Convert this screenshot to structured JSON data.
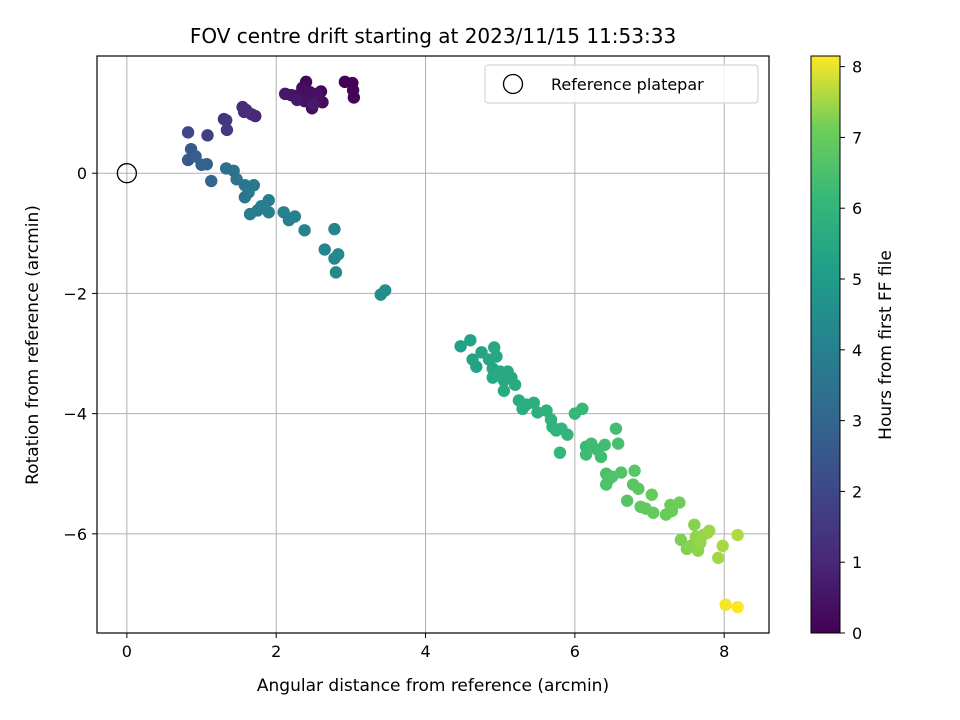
{
  "chart_data": {
    "type": "scatter",
    "title": "FOV centre drift starting at 2023/11/15 11:53:33",
    "xlabel": "Angular distance from reference (arcmin)",
    "ylabel": "Rotation from reference (arcmin)",
    "xlim": [
      -0.4,
      8.6
    ],
    "ylim": [
      -7.65,
      1.95
    ],
    "xticks": [
      0,
      2,
      4,
      6,
      8
    ],
    "yticks": [
      0,
      -2,
      -4,
      -6
    ],
    "xtick_labels": [
      "0",
      "2",
      "4",
      "6",
      "8"
    ],
    "ytick_labels": [
      "0",
      "−2",
      "−4",
      "−6"
    ],
    "grid": true,
    "legend": {
      "location": "top-right",
      "entries": [
        "Reference platepar"
      ]
    },
    "reference_point": {
      "x": 0,
      "y": 0,
      "marker": "open-circle"
    },
    "colorbar": {
      "label": "Hours from first FF file",
      "min": 0,
      "max": 8.15,
      "ticks": [
        0,
        1,
        2,
        3,
        4,
        5,
        6,
        7,
        8
      ],
      "tick_labels": [
        "0",
        "1",
        "2",
        "3",
        "4",
        "5",
        "6",
        "7",
        "8"
      ],
      "colormap": "viridis"
    },
    "points": [
      {
        "x": 2.92,
        "y": 1.52,
        "c": 0.02
      },
      {
        "x": 3.02,
        "y": 1.5,
        "c": 0.05
      },
      {
        "x": 3.03,
        "y": 1.38,
        "c": 0.08
      },
      {
        "x": 3.04,
        "y": 1.26,
        "c": 0.1
      },
      {
        "x": 2.4,
        "y": 1.52,
        "c": 0.15
      },
      {
        "x": 2.6,
        "y": 1.36,
        "c": 0.2
      },
      {
        "x": 2.62,
        "y": 1.18,
        "c": 0.25
      },
      {
        "x": 2.48,
        "y": 1.08,
        "c": 0.3
      },
      {
        "x": 2.35,
        "y": 1.42,
        "c": 0.32
      },
      {
        "x": 2.3,
        "y": 1.3,
        "c": 0.35
      },
      {
        "x": 2.45,
        "y": 1.35,
        "c": 0.38
      },
      {
        "x": 2.52,
        "y": 1.25,
        "c": 0.4
      },
      {
        "x": 2.38,
        "y": 1.2,
        "c": 0.42
      },
      {
        "x": 2.55,
        "y": 1.32,
        "c": 0.45
      },
      {
        "x": 2.2,
        "y": 1.3,
        "c": 0.5
      },
      {
        "x": 2.12,
        "y": 1.32,
        "c": 0.55
      },
      {
        "x": 2.28,
        "y": 1.22,
        "c": 0.6
      },
      {
        "x": 2.5,
        "y": 1.15,
        "c": 0.65
      },
      {
        "x": 1.72,
        "y": 0.95,
        "c": 1.0
      },
      {
        "x": 1.67,
        "y": 0.98,
        "c": 1.05
      },
      {
        "x": 1.55,
        "y": 1.1,
        "c": 1.1
      },
      {
        "x": 1.57,
        "y": 1.02,
        "c": 1.15
      },
      {
        "x": 1.6,
        "y": 1.05,
        "c": 1.2
      },
      {
        "x": 1.3,
        "y": 0.9,
        "c": 1.4
      },
      {
        "x": 1.33,
        "y": 0.88,
        "c": 1.5
      },
      {
        "x": 1.34,
        "y": 0.72,
        "c": 1.6
      },
      {
        "x": 1.08,
        "y": 0.63,
        "c": 1.8
      },
      {
        "x": 0.82,
        "y": 0.68,
        "c": 2.0
      },
      {
        "x": 0.82,
        "y": 0.22,
        "c": 2.5
      },
      {
        "x": 0.86,
        "y": 0.4,
        "c": 2.6
      },
      {
        "x": 0.92,
        "y": 0.28,
        "c": 2.7
      },
      {
        "x": 1.0,
        "y": 0.14,
        "c": 2.8
      },
      {
        "x": 1.07,
        "y": 0.15,
        "c": 2.9
      },
      {
        "x": 1.13,
        "y": -0.13,
        "c": 3.0
      },
      {
        "x": 1.33,
        "y": 0.08,
        "c": 3.3
      },
      {
        "x": 1.43,
        "y": 0.04,
        "c": 3.4
      },
      {
        "x": 1.47,
        "y": -0.1,
        "c": 3.5
      },
      {
        "x": 1.58,
        "y": -0.2,
        "c": 3.6
      },
      {
        "x": 1.58,
        "y": -0.4,
        "c": 3.6
      },
      {
        "x": 1.63,
        "y": -0.32,
        "c": 3.7
      },
      {
        "x": 1.7,
        "y": -0.2,
        "c": 3.7
      },
      {
        "x": 1.65,
        "y": -0.68,
        "c": 3.8
      },
      {
        "x": 1.75,
        "y": -0.62,
        "c": 3.8
      },
      {
        "x": 1.8,
        "y": -0.55,
        "c": 3.9
      },
      {
        "x": 1.9,
        "y": -0.45,
        "c": 3.9
      },
      {
        "x": 1.9,
        "y": -0.65,
        "c": 3.95
      },
      {
        "x": 2.1,
        "y": -0.65,
        "c": 4.0
      },
      {
        "x": 2.17,
        "y": -0.78,
        "c": 4.0
      },
      {
        "x": 2.25,
        "y": -0.72,
        "c": 4.05
      },
      {
        "x": 2.38,
        "y": -0.95,
        "c": 4.1
      },
      {
        "x": 2.65,
        "y": -1.27,
        "c": 4.2
      },
      {
        "x": 2.78,
        "y": -0.93,
        "c": 4.2
      },
      {
        "x": 2.78,
        "y": -1.42,
        "c": 4.25
      },
      {
        "x": 2.83,
        "y": -1.35,
        "c": 4.3
      },
      {
        "x": 2.8,
        "y": -1.65,
        "c": 4.3
      },
      {
        "x": 3.4,
        "y": -2.02,
        "c": 4.5
      },
      {
        "x": 3.46,
        "y": -1.95,
        "c": 4.55
      },
      {
        "x": 4.47,
        "y": -2.88,
        "c": 5.2
      },
      {
        "x": 4.6,
        "y": -2.78,
        "c": 5.25
      },
      {
        "x": 4.63,
        "y": -3.1,
        "c": 5.3
      },
      {
        "x": 4.68,
        "y": -3.22,
        "c": 5.3
      },
      {
        "x": 4.75,
        "y": -2.98,
        "c": 5.35
      },
      {
        "x": 4.85,
        "y": -3.1,
        "c": 5.4
      },
      {
        "x": 4.9,
        "y": -3.25,
        "c": 5.4
      },
      {
        "x": 4.92,
        "y": -2.9,
        "c": 5.45
      },
      {
        "x": 4.95,
        "y": -3.05,
        "c": 5.45
      },
      {
        "x": 5.0,
        "y": -3.3,
        "c": 5.5
      },
      {
        "x": 5.05,
        "y": -3.45,
        "c": 5.5
      },
      {
        "x": 4.9,
        "y": -3.4,
        "c": 5.5
      },
      {
        "x": 5.1,
        "y": -3.3,
        "c": 5.55
      },
      {
        "x": 5.15,
        "y": -3.4,
        "c": 5.55
      },
      {
        "x": 5.2,
        "y": -3.52,
        "c": 5.6
      },
      {
        "x": 5.05,
        "y": -3.62,
        "c": 5.6
      },
      {
        "x": 5.25,
        "y": -3.78,
        "c": 5.65
      },
      {
        "x": 5.3,
        "y": -3.92,
        "c": 5.7
      },
      {
        "x": 5.35,
        "y": -3.85,
        "c": 5.7
      },
      {
        "x": 5.45,
        "y": -3.82,
        "c": 5.75
      },
      {
        "x": 5.5,
        "y": -3.98,
        "c": 5.8
      },
      {
        "x": 5.62,
        "y": -3.95,
        "c": 5.85
      },
      {
        "x": 5.68,
        "y": -4.1,
        "c": 5.9
      },
      {
        "x": 5.7,
        "y": -4.22,
        "c": 5.9
      },
      {
        "x": 5.75,
        "y": -4.28,
        "c": 5.95
      },
      {
        "x": 5.82,
        "y": -4.25,
        "c": 6.0
      },
      {
        "x": 5.9,
        "y": -4.35,
        "c": 6.0
      },
      {
        "x": 5.8,
        "y": -4.65,
        "c": 6.05
      },
      {
        "x": 6.0,
        "y": -4.0,
        "c": 6.1
      },
      {
        "x": 6.1,
        "y": -3.92,
        "c": 6.15
      },
      {
        "x": 6.15,
        "y": -4.55,
        "c": 6.2
      },
      {
        "x": 6.15,
        "y": -4.68,
        "c": 6.25
      },
      {
        "x": 6.22,
        "y": -4.5,
        "c": 6.3
      },
      {
        "x": 6.3,
        "y": -4.6,
        "c": 6.3
      },
      {
        "x": 6.35,
        "y": -4.72,
        "c": 6.35
      },
      {
        "x": 6.4,
        "y": -4.52,
        "c": 6.35
      },
      {
        "x": 6.55,
        "y": -4.25,
        "c": 6.4
      },
      {
        "x": 6.58,
        "y": -4.5,
        "c": 6.45
      },
      {
        "x": 6.42,
        "y": -5.0,
        "c": 6.5
      },
      {
        "x": 6.45,
        "y": -5.1,
        "c": 6.55
      },
      {
        "x": 6.42,
        "y": -5.18,
        "c": 6.55
      },
      {
        "x": 6.5,
        "y": -5.05,
        "c": 6.6
      },
      {
        "x": 6.62,
        "y": -4.98,
        "c": 6.65
      },
      {
        "x": 6.7,
        "y": -5.45,
        "c": 6.7
      },
      {
        "x": 6.78,
        "y": -5.18,
        "c": 6.75
      },
      {
        "x": 6.8,
        "y": -4.95,
        "c": 6.75
      },
      {
        "x": 6.85,
        "y": -5.25,
        "c": 6.8
      },
      {
        "x": 6.88,
        "y": -5.55,
        "c": 6.85
      },
      {
        "x": 6.95,
        "y": -5.58,
        "c": 6.9
      },
      {
        "x": 7.03,
        "y": -5.35,
        "c": 6.95
      },
      {
        "x": 7.05,
        "y": -5.65,
        "c": 6.95
      },
      {
        "x": 7.22,
        "y": -5.68,
        "c": 7.0
      },
      {
        "x": 7.28,
        "y": -5.52,
        "c": 7.05
      },
      {
        "x": 7.3,
        "y": -5.62,
        "c": 7.05
      },
      {
        "x": 7.4,
        "y": -5.48,
        "c": 7.1
      },
      {
        "x": 7.42,
        "y": -6.1,
        "c": 7.2
      },
      {
        "x": 7.5,
        "y": -6.25,
        "c": 7.25
      },
      {
        "x": 7.55,
        "y": -6.2,
        "c": 7.3
      },
      {
        "x": 7.6,
        "y": -5.85,
        "c": 7.3
      },
      {
        "x": 7.62,
        "y": -6.05,
        "c": 7.35
      },
      {
        "x": 7.65,
        "y": -6.28,
        "c": 7.35
      },
      {
        "x": 7.68,
        "y": -6.15,
        "c": 7.4
      },
      {
        "x": 7.72,
        "y": -6.02,
        "c": 7.4
      },
      {
        "x": 7.78,
        "y": -5.98,
        "c": 7.45
      },
      {
        "x": 7.8,
        "y": -5.95,
        "c": 7.45
      },
      {
        "x": 7.92,
        "y": -6.4,
        "c": 7.5
      },
      {
        "x": 7.98,
        "y": -6.2,
        "c": 7.55
      },
      {
        "x": 8.18,
        "y": -6.02,
        "c": 7.6
      },
      {
        "x": 8.02,
        "y": -7.18,
        "c": 8.1
      },
      {
        "x": 8.18,
        "y": -7.22,
        "c": 8.15
      }
    ]
  }
}
